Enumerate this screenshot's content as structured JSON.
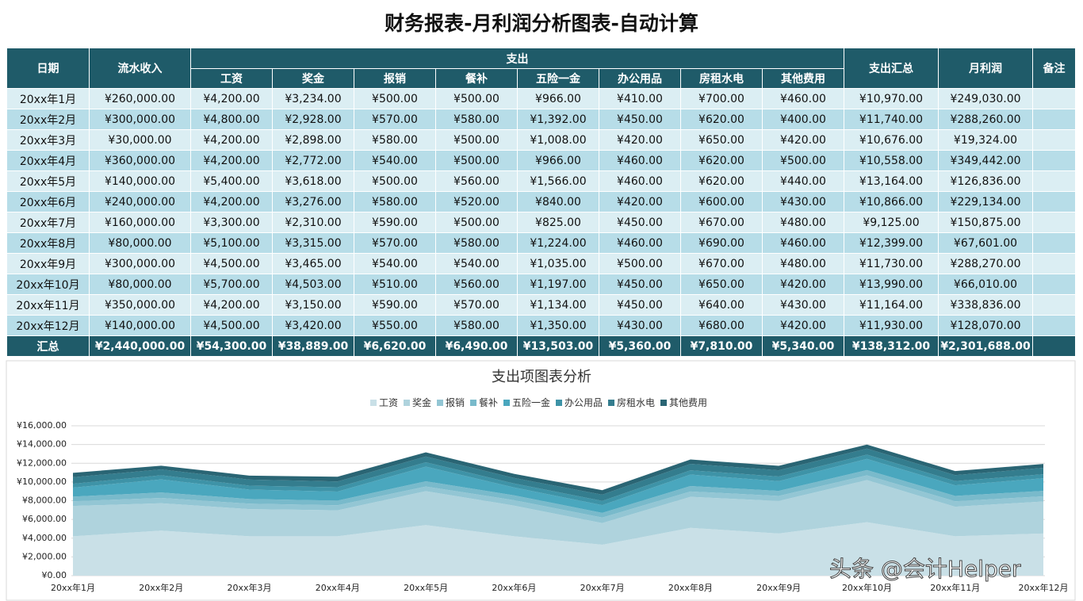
{
  "title": "财务报表-月利润分析图表-自动计算",
  "table": {
    "columns": [
      "日期",
      "流水收入",
      "支出",
      "支出汇总",
      "月利润",
      "备注"
    ],
    "sub_columns": [
      "工资",
      "奖金",
      "报销",
      "餐补",
      "五险一金",
      "办公用品",
      "房租水电",
      "其他费用"
    ],
    "rows": [
      [
        "20xx年1月",
        "¥260,000.00",
        "¥4,200.00",
        "¥3,234.00",
        "¥500.00",
        "¥500.00",
        "¥966.00",
        "¥410.00",
        "¥700.00",
        "¥460.00",
        "¥10,970.00",
        "¥249,030.00"
      ],
      [
        "20xx年2月",
        "¥300,000.00",
        "¥4,800.00",
        "¥2,928.00",
        "¥570.00",
        "¥580.00",
        "¥1,392.00",
        "¥450.00",
        "¥620.00",
        "¥400.00",
        "¥11,740.00",
        "¥288,260.00"
      ],
      [
        "20xx年3月",
        "¥30,000.00",
        "¥4,200.00",
        "¥2,898.00",
        "¥580.00",
        "¥500.00",
        "¥1,008.00",
        "¥420.00",
        "¥650.00",
        "¥420.00",
        "¥10,676.00",
        "¥19,324.00"
      ],
      [
        "20xx年4月",
        "¥360,000.00",
        "¥4,200.00",
        "¥2,772.00",
        "¥540.00",
        "¥500.00",
        "¥966.00",
        "¥460.00",
        "¥620.00",
        "¥500.00",
        "¥10,558.00",
        "¥349,442.00"
      ],
      [
        "20xx年5月",
        "¥140,000.00",
        "¥5,400.00",
        "¥3,618.00",
        "¥500.00",
        "¥560.00",
        "¥1,566.00",
        "¥460.00",
        "¥620.00",
        "¥440.00",
        "¥13,164.00",
        "¥126,836.00"
      ],
      [
        "20xx年6月",
        "¥240,000.00",
        "¥4,200.00",
        "¥3,276.00",
        "¥580.00",
        "¥520.00",
        "¥840.00",
        "¥420.00",
        "¥600.00",
        "¥430.00",
        "¥10,866.00",
        "¥229,134.00"
      ],
      [
        "20xx年7月",
        "¥160,000.00",
        "¥3,300.00",
        "¥2,310.00",
        "¥590.00",
        "¥500.00",
        "¥825.00",
        "¥450.00",
        "¥670.00",
        "¥480.00",
        "¥9,125.00",
        "¥150,875.00"
      ],
      [
        "20xx年8月",
        "¥80,000.00",
        "¥5,100.00",
        "¥3,315.00",
        "¥570.00",
        "¥580.00",
        "¥1,224.00",
        "¥460.00",
        "¥690.00",
        "¥460.00",
        "¥12,399.00",
        "¥67,601.00"
      ],
      [
        "20xx年9月",
        "¥300,000.00",
        "¥4,500.00",
        "¥3,465.00",
        "¥540.00",
        "¥540.00",
        "¥1,035.00",
        "¥500.00",
        "¥670.00",
        "¥480.00",
        "¥11,730.00",
        "¥288,270.00"
      ],
      [
        "20xx年10月",
        "¥80,000.00",
        "¥5,700.00",
        "¥4,503.00",
        "¥510.00",
        "¥560.00",
        "¥1,197.00",
        "¥450.00",
        "¥650.00",
        "¥420.00",
        "¥13,990.00",
        "¥66,010.00"
      ],
      [
        "20xx年11月",
        "¥350,000.00",
        "¥4,200.00",
        "¥3,150.00",
        "¥590.00",
        "¥570.00",
        "¥1,134.00",
        "¥450.00",
        "¥640.00",
        "¥430.00",
        "¥11,164.00",
        "¥338,836.00"
      ],
      [
        "20xx年12月",
        "¥140,000.00",
        "¥4,500.00",
        "¥3,420.00",
        "¥550.00",
        "¥580.00",
        "¥1,350.00",
        "¥430.00",
        "¥680.00",
        "¥420.00",
        "¥11,930.00",
        "¥128,070.00"
      ]
    ],
    "total": [
      "汇总",
      "¥2,440,000.00",
      "¥54,300.00",
      "¥38,889.00",
      "¥6,620.00",
      "¥6,490.00",
      "¥13,503.00",
      "¥5,360.00",
      "¥7,810.00",
      "¥5,340.00",
      "¥138,312.00",
      "¥2,301,688.00"
    ]
  },
  "chart_data": {
    "type": "stacked_area",
    "title": "支出项图表分析",
    "categories": [
      "20xx年1月",
      "20xx年2月",
      "20xx年3月",
      "20xx年4月",
      "20xx年5月",
      "20xx年6月",
      "20xx年7月",
      "20xx年8月",
      "20xx年9月",
      "20xx年10月",
      "20xx年11月",
      "20xx年12月"
    ],
    "series": [
      {
        "name": "工资",
        "color": "#c9e0e7",
        "values": [
          4200,
          4800,
          4200,
          4200,
          5400,
          4200,
          3300,
          5100,
          4500,
          5700,
          4200,
          4500
        ]
      },
      {
        "name": "奖金",
        "color": "#afd3dd",
        "values": [
          3234,
          2928,
          2898,
          2772,
          3618,
          3276,
          2310,
          3315,
          3465,
          4503,
          3150,
          3420
        ]
      },
      {
        "name": "报销",
        "color": "#93c6d4",
        "values": [
          500,
          570,
          580,
          540,
          500,
          580,
          590,
          570,
          540,
          510,
          590,
          550
        ]
      },
      {
        "name": "餐补",
        "color": "#79bacb",
        "values": [
          500,
          580,
          500,
          500,
          560,
          520,
          500,
          580,
          540,
          560,
          570,
          580
        ]
      },
      {
        "name": "五险一金",
        "color": "#4aa7be",
        "values": [
          966,
          1392,
          1008,
          966,
          1566,
          840,
          825,
          1224,
          1035,
          1197,
          1134,
          1350
        ]
      },
      {
        "name": "办公用品",
        "color": "#3e93a7",
        "values": [
          410,
          450,
          420,
          460,
          460,
          420,
          450,
          460,
          500,
          450,
          450,
          430
        ]
      },
      {
        "name": "房租水电",
        "color": "#347d8e",
        "values": [
          700,
          620,
          650,
          620,
          620,
          600,
          670,
          690,
          670,
          650,
          640,
          680
        ]
      },
      {
        "name": "其他费用",
        "color": "#2a6574",
        "values": [
          460,
          400,
          420,
          500,
          440,
          430,
          480,
          460,
          480,
          420,
          430,
          420
        ]
      }
    ],
    "ylim": [
      0,
      16000
    ],
    "yticks": [
      {
        "value": 0,
        "label": "¥0.00"
      },
      {
        "value": 2000,
        "label": "¥2,000.00"
      },
      {
        "value": 4000,
        "label": "¥4,000.00"
      },
      {
        "value": 6000,
        "label": "¥6,000.00"
      },
      {
        "value": 8000,
        "label": "¥8,000.00"
      },
      {
        "value": 10000,
        "label": "¥10,000.00"
      },
      {
        "value": 12000,
        "label": "¥12,000.00"
      },
      {
        "value": 14000,
        "label": "¥14,000.00"
      },
      {
        "value": 16000,
        "label": "¥16,000.00"
      }
    ],
    "grid": true
  },
  "watermark": "头条 @会计Helper"
}
